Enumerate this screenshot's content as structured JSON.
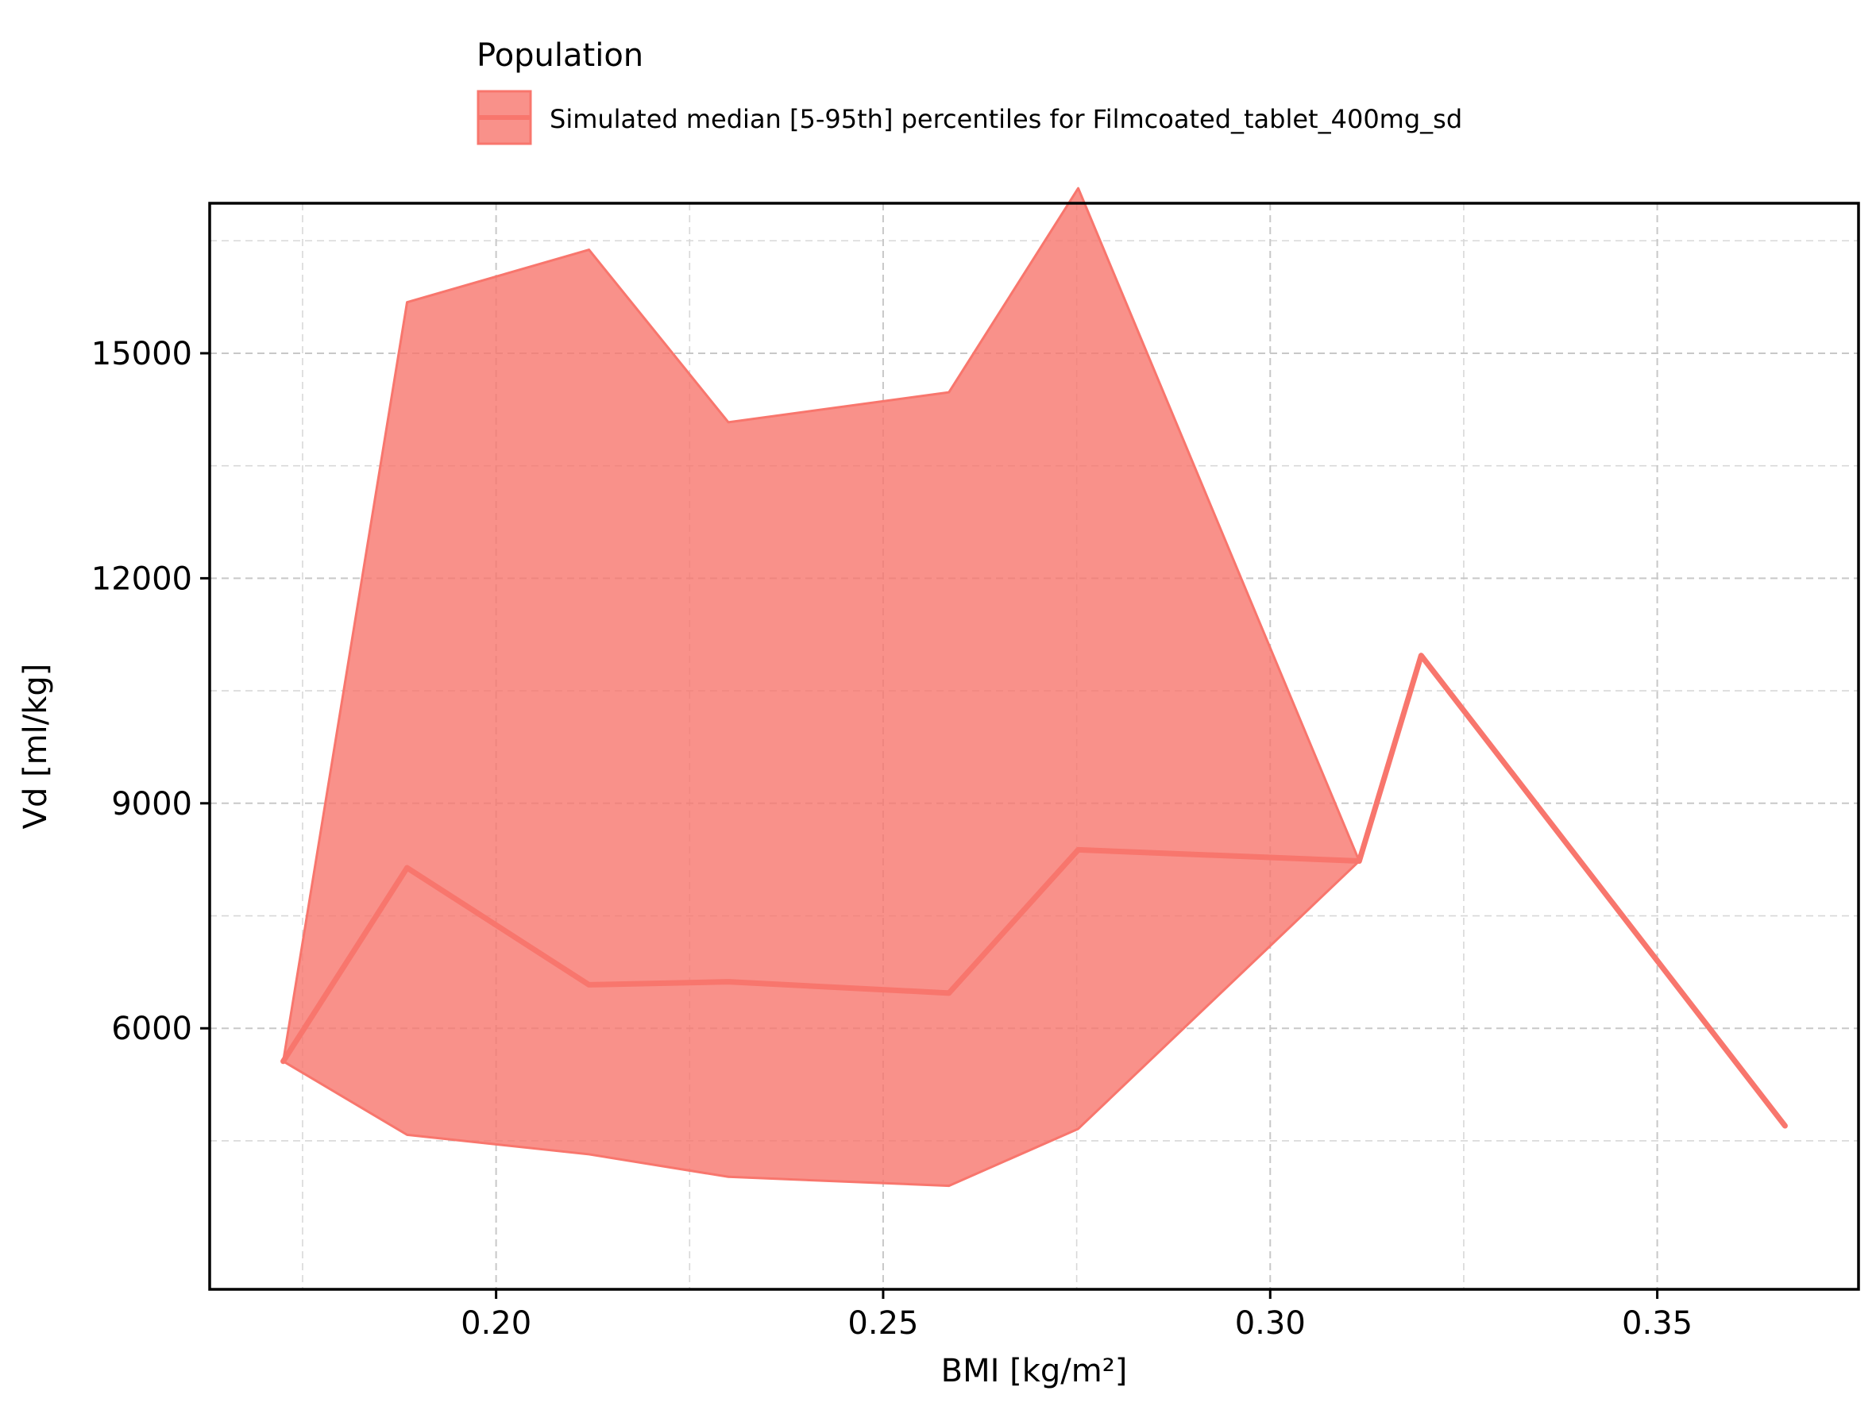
{
  "chart_data": {
    "type": "area",
    "title": "",
    "xlabel": "BMI [kg/m²]",
    "ylabel": "Vd [ml/kg]",
    "xlim": [
      0.163,
      0.376
    ],
    "ylim": [
      2520,
      17000
    ],
    "x_ticks": [
      0.2,
      0.25,
      0.3,
      0.35
    ],
    "x_tick_labels": [
      "0.20",
      "0.25",
      "0.30",
      "0.35"
    ],
    "x_minor_ticks": [
      0.175,
      0.225,
      0.275,
      0.325
    ],
    "y_ticks": [
      6000,
      9000,
      12000,
      15000
    ],
    "y_tick_labels": [
      "6000",
      "9000",
      "12000",
      "15000"
    ],
    "y_minor_ticks": [
      4500,
      7500,
      10500,
      13500,
      16500
    ],
    "grid": true,
    "legend": {
      "title": "Population",
      "placement": "top-center, outside plot",
      "entries": [
        "Simulated median [5-95th] percentiles for Filmcoated_tablet_400mg_sd"
      ]
    },
    "series": [
      {
        "name": "Simulated median [5-95th] percentiles for Filmcoated_tablet_400mg_sd",
        "color": "#f8766d",
        "fill_color": "#f8766d",
        "x": [
          0.1725,
          0.1885,
          0.212,
          0.23,
          0.2585,
          0.2752,
          0.3115,
          0.3195,
          0.3665
        ],
        "median": [
          5560,
          8140,
          6580,
          6620,
          6470,
          8380,
          8230,
          10970,
          4700
        ],
        "lower": [
          5560,
          4580,
          4320,
          4020,
          3900,
          4660,
          8230,
          10970,
          4700
        ],
        "upper": [
          5560,
          15680,
          16380,
          14080,
          14480,
          17200,
          8230,
          10970,
          4700
        ]
      }
    ]
  }
}
